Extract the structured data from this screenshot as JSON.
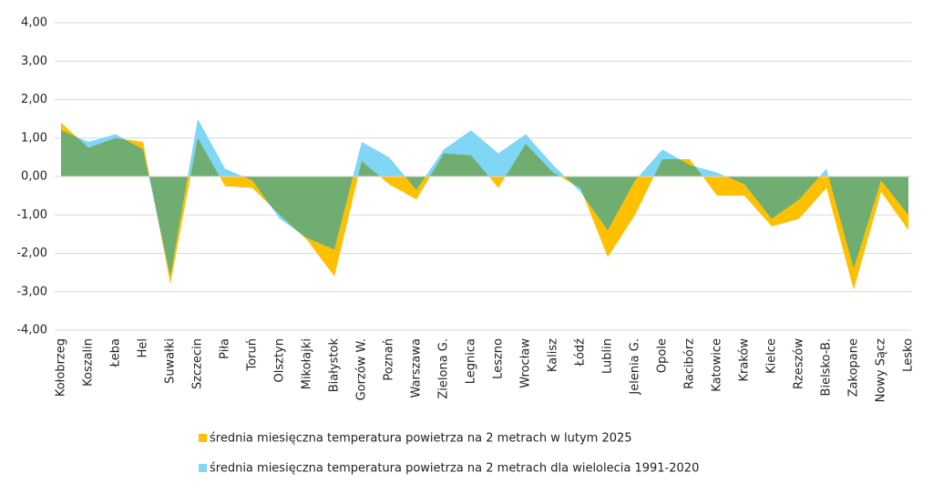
{
  "chart_data": {
    "type": "area",
    "categories": [
      "Kołobrzeg",
      "Koszalin",
      "Łeba",
      "Hel",
      "Suwałki",
      "Szczecin",
      "Piła",
      "Toruń",
      "Olsztyn",
      "Mikołajki",
      "Białystok",
      "Gorzów W.",
      "Poznań",
      "Warszawa",
      "Zielona G.",
      "Legnica",
      "Leszno",
      "Wrocław",
      "Kalisz",
      "Łódź",
      "Lublin",
      "Jelenia G.",
      "Opole",
      "Racibórz",
      "Katowice",
      "Kraków",
      "Kielce",
      "Rzeszów",
      "Bielsko-B.",
      "Zakopane",
      "Nowy Sącz",
      "Lesko"
    ],
    "series": [
      {
        "name": "średnia miesięczna temperatura powietrza na 2 metrach w lutym 2025",
        "color": "#ffc000",
        "values": [
          1.4,
          0.75,
          1.0,
          0.9,
          -2.8,
          1.0,
          -0.25,
          -0.3,
          -1.0,
          -1.65,
          -2.6,
          0.4,
          -0.2,
          -0.6,
          0.6,
          0.55,
          -0.3,
          0.85,
          0.1,
          -0.3,
          -2.1,
          -1.0,
          0.45,
          0.45,
          -0.5,
          -0.5,
          -1.3,
          -1.1,
          -0.3,
          -2.95,
          -0.4,
          -1.4
        ]
      },
      {
        "name": "średnia miesięczna temperatura powietrza na 2 metrach dla wielolecia 1991-2020",
        "color": "#7fd6f5",
        "values": [
          1.2,
          0.9,
          1.1,
          0.7,
          -2.6,
          1.5,
          0.2,
          -0.1,
          -1.1,
          -1.6,
          -1.9,
          0.9,
          0.5,
          -0.35,
          0.7,
          1.2,
          0.6,
          1.1,
          0.3,
          -0.4,
          -1.4,
          -0.1,
          0.7,
          0.3,
          0.1,
          -0.2,
          -1.1,
          -0.6,
          0.2,
          -2.4,
          -0.1,
          -1.0
        ]
      }
    ],
    "ylim": [
      -4,
      4
    ],
    "yticks": [
      {
        "value": -4,
        "label": "-4,00"
      },
      {
        "value": -3,
        "label": "-3,00"
      },
      {
        "value": -2,
        "label": "-2,00"
      },
      {
        "value": -1,
        "label": "-1,00"
      },
      {
        "value": 0,
        "label": "0,00"
      },
      {
        "value": 1,
        "label": "1,00"
      },
      {
        "value": 2,
        "label": "2,00"
      },
      {
        "value": 3,
        "label": "3,00"
      },
      {
        "value": 4,
        "label": "4,00"
      }
    ],
    "grid": true
  }
}
